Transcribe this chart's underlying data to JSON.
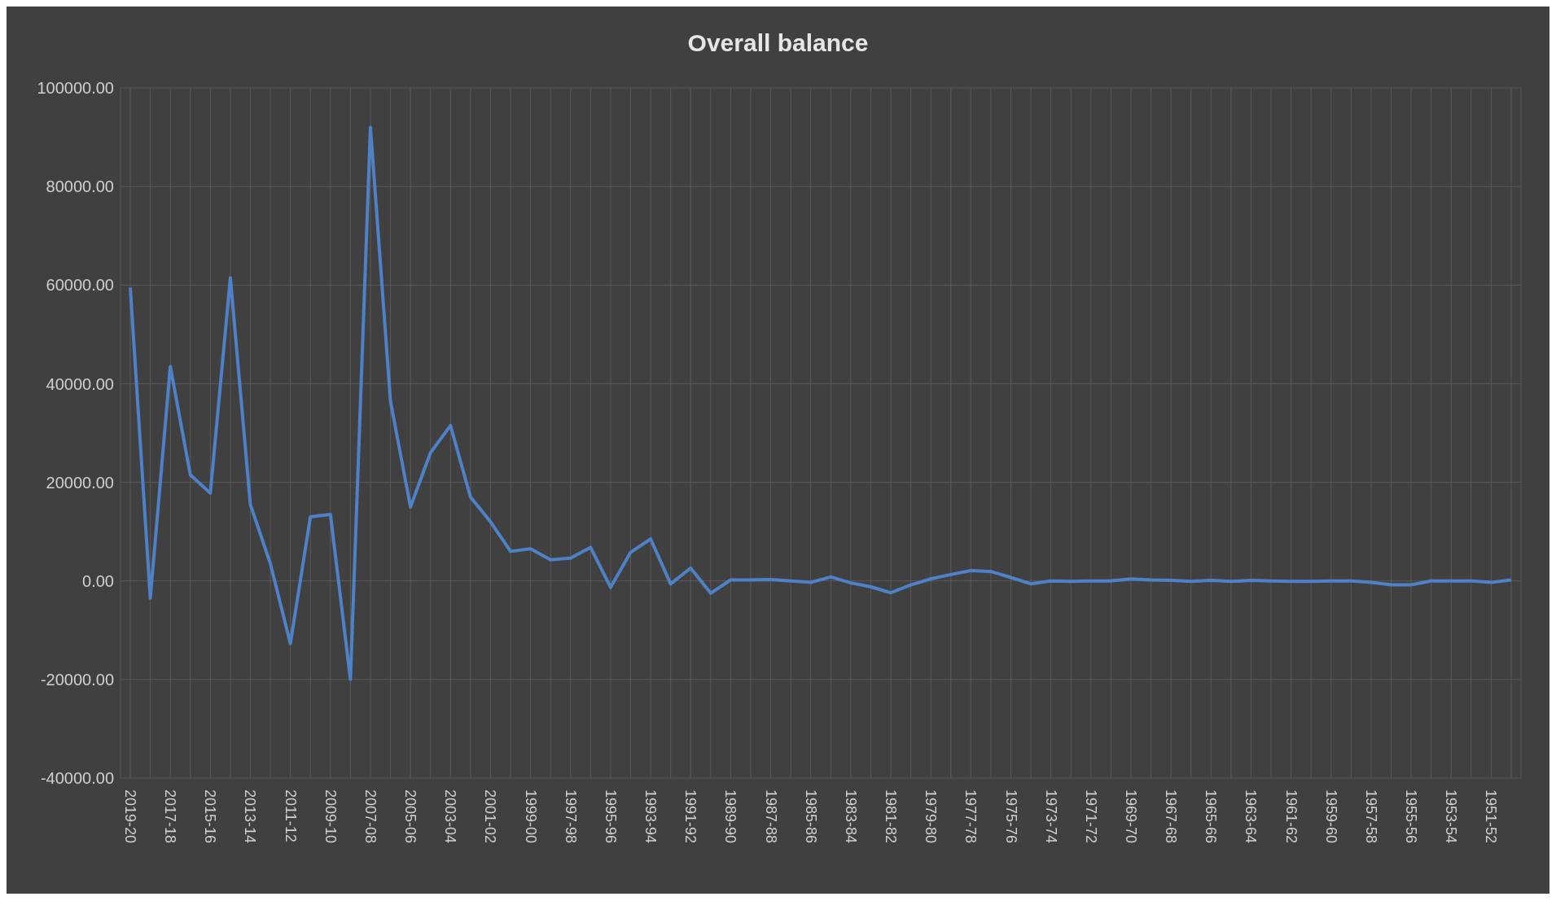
{
  "chart_data": {
    "type": "line",
    "title": "Overall balance",
    "categories": [
      "2019-20",
      null,
      "2017-18",
      null,
      "2015-16",
      null,
      "2013-14",
      null,
      "2011-12",
      null,
      "2009-10",
      null,
      "2007-08",
      null,
      "2005-06",
      null,
      "2003-04",
      null,
      "2001-02",
      null,
      "1999-00",
      null,
      "1997-98",
      null,
      "1995-96",
      null,
      "1993-94",
      null,
      "1991-92",
      null,
      "1989-90",
      null,
      "1987-88",
      null,
      "1985-86",
      null,
      "1983-84",
      null,
      "1981-82",
      null,
      "1979-80",
      null,
      "1977-78",
      null,
      "1975-76",
      null,
      "1973-74",
      null,
      "1971-72",
      null,
      "1969-70",
      null,
      "1967-68",
      null,
      "1965-66",
      null,
      "1963-64",
      null,
      "1961-62",
      null,
      "1959-60",
      null,
      "1957-58",
      null,
      "1955-56",
      null,
      "1953-54",
      null,
      "1951-52",
      null
    ],
    "series": [
      {
        "color": "#4f81c7",
        "values": [
          59500,
          -3500,
          43500,
          21500,
          17800,
          61500,
          15500,
          3500,
          -12700,
          13000,
          13500,
          -20000,
          92000,
          36500,
          15000,
          26000,
          31500,
          17000,
          12000,
          6000,
          6500,
          4300,
          4600,
          6800,
          -1300,
          5800,
          8500,
          -600,
          2600,
          -2500,
          200,
          200,
          300,
          0,
          -300,
          800,
          -400,
          -1200,
          -2400,
          -800,
          400,
          1300,
          2100,
          1900,
          700,
          -600,
          0,
          -100,
          0,
          0,
          400,
          200,
          100,
          -100,
          100,
          -100,
          100,
          0,
          -100,
          -100,
          0,
          0,
          -300,
          -800,
          -800,
          0,
          0,
          0,
          -300,
          200
        ]
      }
    ],
    "ylim": [
      -40000,
      100000
    ],
    "yticks": [
      {
        "value": -40000,
        "label": "-40000.00"
      },
      {
        "value": -20000,
        "label": "-20000.00"
      },
      {
        "value": 0,
        "label": "0.00"
      },
      {
        "value": 20000,
        "label": "20000.00"
      },
      {
        "value": 40000,
        "label": "40000.00"
      },
      {
        "value": 60000,
        "label": "60000.00"
      },
      {
        "value": 80000,
        "label": "80000.00"
      },
      {
        "value": 100000,
        "label": "100000.00"
      }
    ],
    "grid": true,
    "legend": false,
    "marker": "none",
    "line_style": "solid"
  }
}
